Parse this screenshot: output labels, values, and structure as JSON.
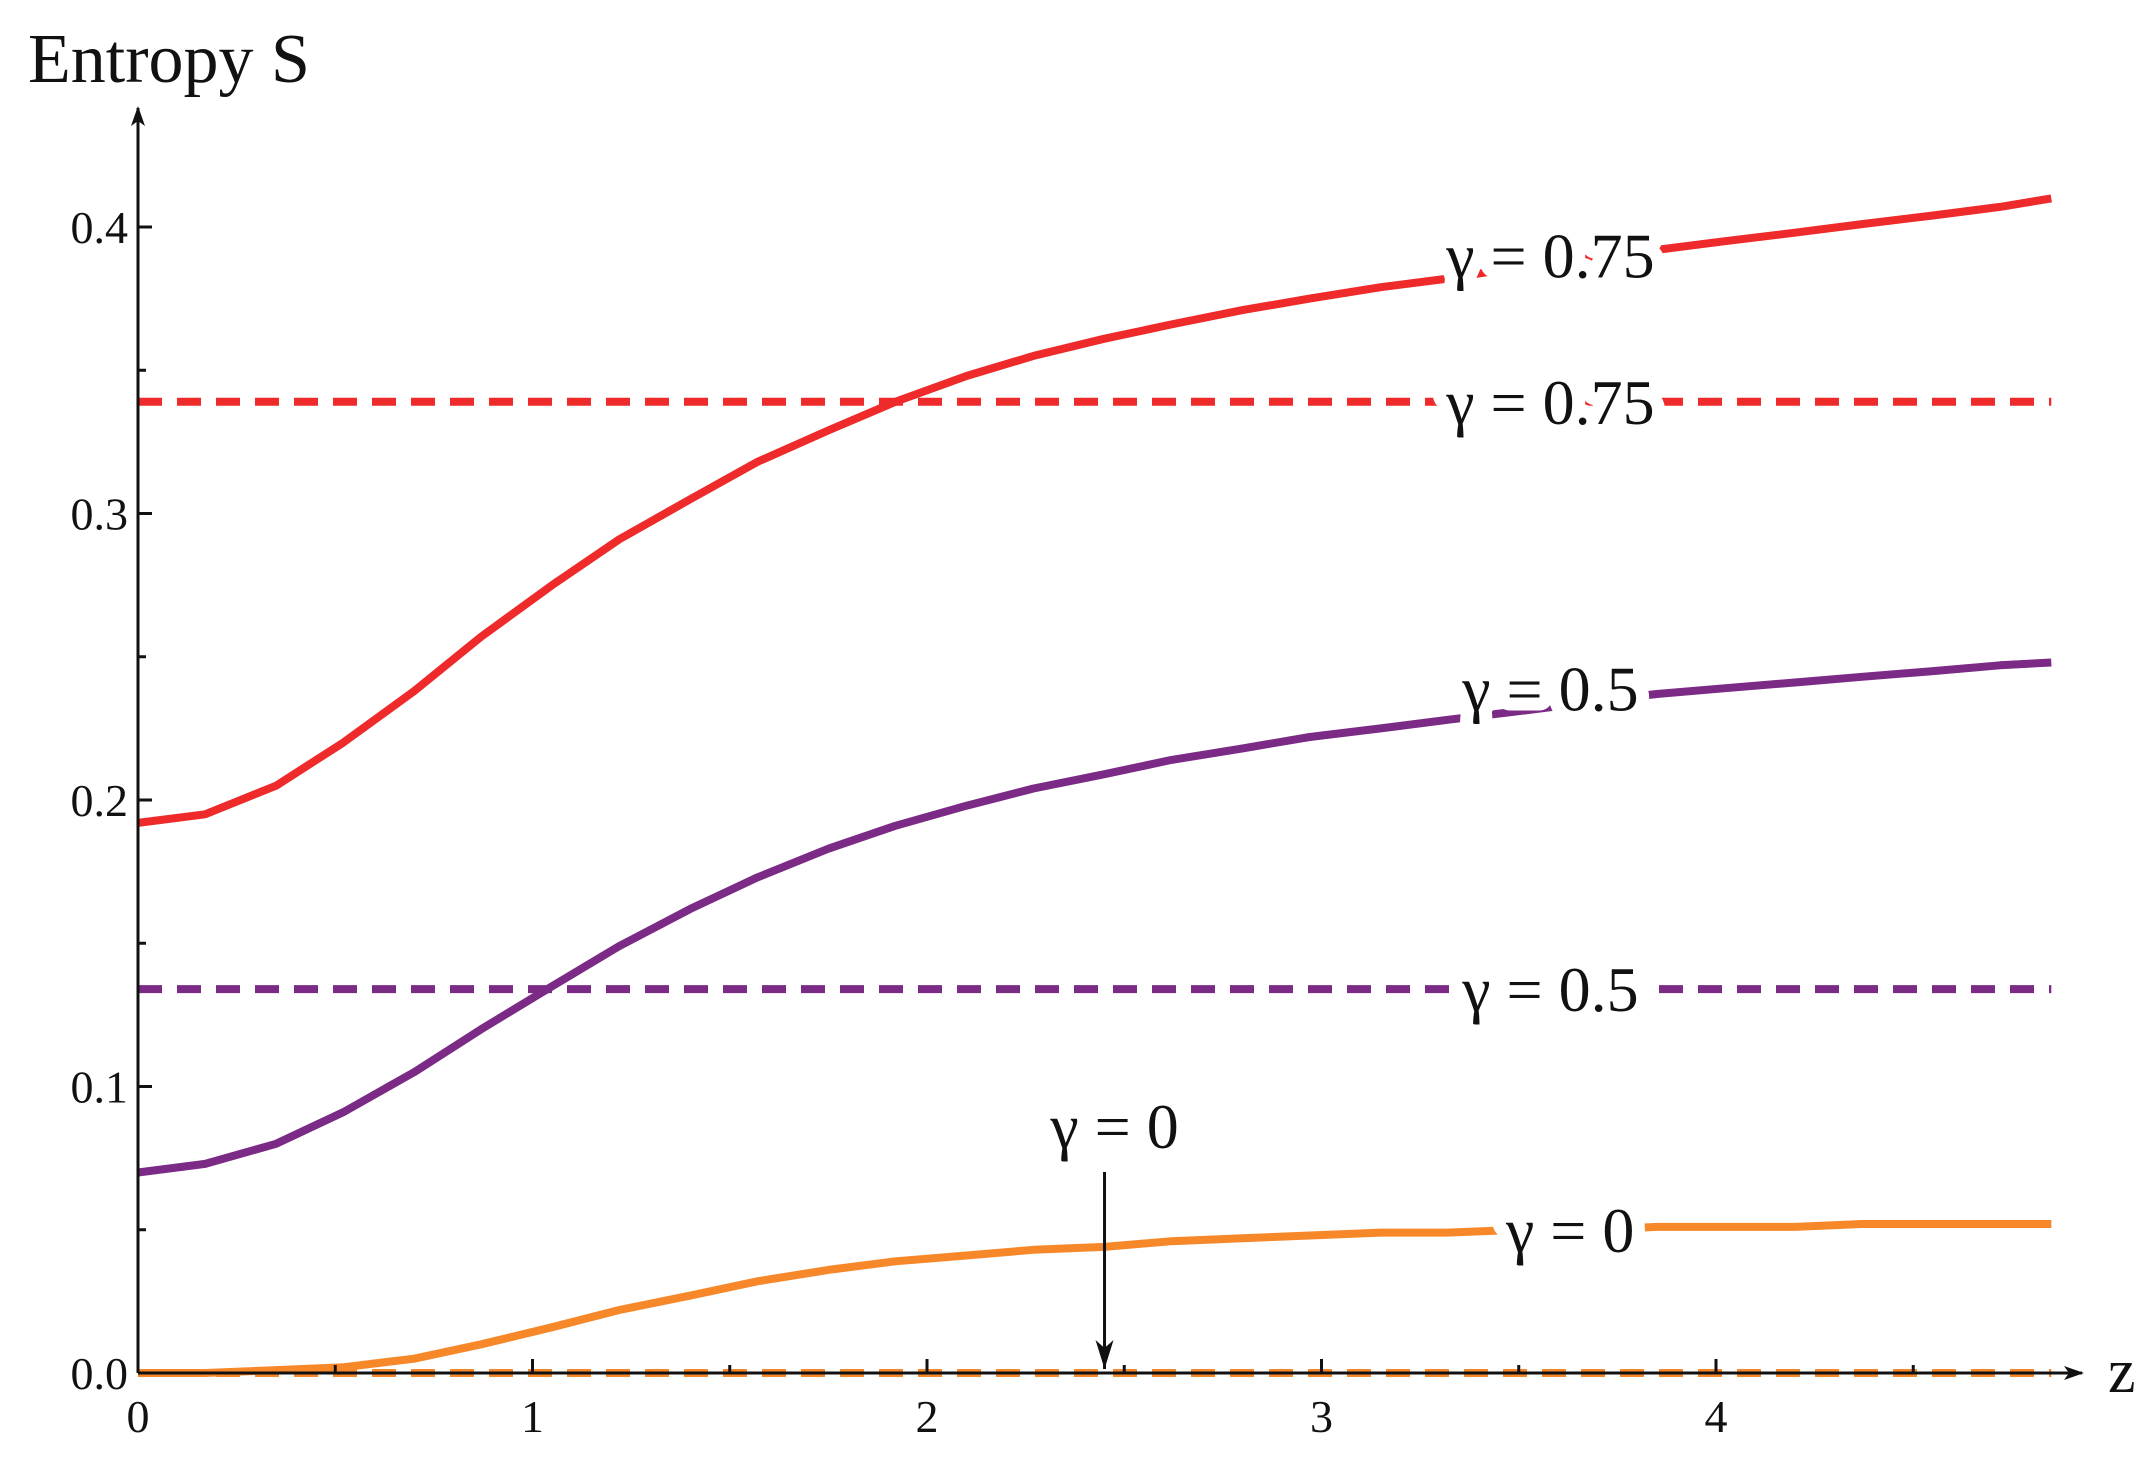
{
  "chart_data": {
    "type": "line",
    "ylabel": "Entropy S",
    "xlabel": "z",
    "xlim": [
      0,
      4.85
    ],
    "ylim": [
      0,
      0.44
    ],
    "x_ticks": [
      0,
      1,
      2,
      3,
      4
    ],
    "x_tick_labels": [
      "0",
      "1",
      "2",
      "3",
      "4"
    ],
    "y_ticks": [
      0.0,
      0.1,
      0.2,
      0.3,
      0.4
    ],
    "y_tick_labels": [
      "0.0",
      "0.1",
      "0.2",
      "0.3",
      "0.4"
    ],
    "series": [
      {
        "color": "#ee2a2a",
        "style": "solid",
        "x": [
          0,
          0.17,
          0.35,
          0.52,
          0.7,
          0.87,
          1.05,
          1.22,
          1.4,
          1.57,
          1.75,
          1.92,
          2.1,
          2.27,
          2.45,
          2.62,
          2.8,
          2.97,
          3.15,
          3.32,
          3.5,
          3.67,
          3.85,
          4.02,
          4.2,
          4.37,
          4.55,
          4.72,
          4.85
        ],
        "values": [
          0.192,
          0.195,
          0.205,
          0.22,
          0.238,
          0.257,
          0.275,
          0.291,
          0.305,
          0.318,
          0.329,
          0.339,
          0.348,
          0.355,
          0.361,
          0.366,
          0.371,
          0.375,
          0.379,
          0.382,
          0.386,
          0.389,
          0.392,
          0.395,
          0.398,
          0.401,
          0.404,
          0.407,
          0.41
        ]
      },
      {
        "color": "#ee2a2a",
        "style": "dashed",
        "x": [
          0,
          4.85
        ],
        "values": [
          0.339,
          0.339
        ]
      },
      {
        "color": "#7b2a86",
        "style": "solid",
        "x": [
          0,
          0.17,
          0.35,
          0.52,
          0.7,
          0.87,
          1.05,
          1.22,
          1.4,
          1.57,
          1.75,
          1.92,
          2.1,
          2.27,
          2.45,
          2.62,
          2.8,
          2.97,
          3.15,
          3.32,
          3.5,
          3.67,
          3.85,
          4.02,
          4.2,
          4.37,
          4.55,
          4.72,
          4.85
        ],
        "values": [
          0.07,
          0.073,
          0.08,
          0.091,
          0.105,
          0.12,
          0.135,
          0.149,
          0.162,
          0.173,
          0.183,
          0.191,
          0.198,
          0.204,
          0.209,
          0.214,
          0.218,
          0.222,
          0.225,
          0.228,
          0.231,
          0.234,
          0.237,
          0.239,
          0.241,
          0.243,
          0.245,
          0.247,
          0.248
        ]
      },
      {
        "color": "#7b2a86",
        "style": "dashed",
        "x": [
          0,
          4.85
        ],
        "values": [
          0.134,
          0.134
        ]
      },
      {
        "color": "#f7882a",
        "style": "solid",
        "x": [
          0,
          0.17,
          0.35,
          0.52,
          0.7,
          0.87,
          1.05,
          1.22,
          1.4,
          1.57,
          1.75,
          1.92,
          2.1,
          2.27,
          2.45,
          2.62,
          2.8,
          2.97,
          3.15,
          3.32,
          3.5,
          3.67,
          3.85,
          4.02,
          4.2,
          4.37,
          4.55,
          4.72,
          4.85
        ],
        "values": [
          0.0,
          0.0,
          0.001,
          0.002,
          0.005,
          0.01,
          0.016,
          0.022,
          0.027,
          0.032,
          0.036,
          0.039,
          0.041,
          0.043,
          0.044,
          0.046,
          0.047,
          0.048,
          0.049,
          0.049,
          0.05,
          0.05,
          0.051,
          0.051,
          0.051,
          0.052,
          0.052,
          0.052,
          0.052
        ]
      },
      {
        "color": "#f7882a",
        "style": "dashed",
        "x": [
          0,
          4.85
        ],
        "values": [
          0.0,
          0.0
        ]
      }
    ],
    "annotations": [
      {
        "text": "γ = 0.75",
        "x": 3.2,
        "y": 0.39,
        "color": "#ee2a2a"
      },
      {
        "text": "γ = 0.75",
        "x": 3.2,
        "y": 0.339,
        "color": "#ee2a2a"
      },
      {
        "text": "γ = 0.5",
        "x": 3.2,
        "y": 0.239,
        "color": "#7b2a86"
      },
      {
        "text": "γ = 0.5",
        "x": 3.2,
        "y": 0.134,
        "color": "#7b2a86"
      },
      {
        "text": "γ = 0",
        "x": 3.25,
        "y": 0.05,
        "color": "#f7882a"
      },
      {
        "text": "γ = 0",
        "x": 2.45,
        "y": 0.085,
        "arrow_to": [
          2.45,
          0.0
        ],
        "color": "#111111"
      }
    ]
  }
}
